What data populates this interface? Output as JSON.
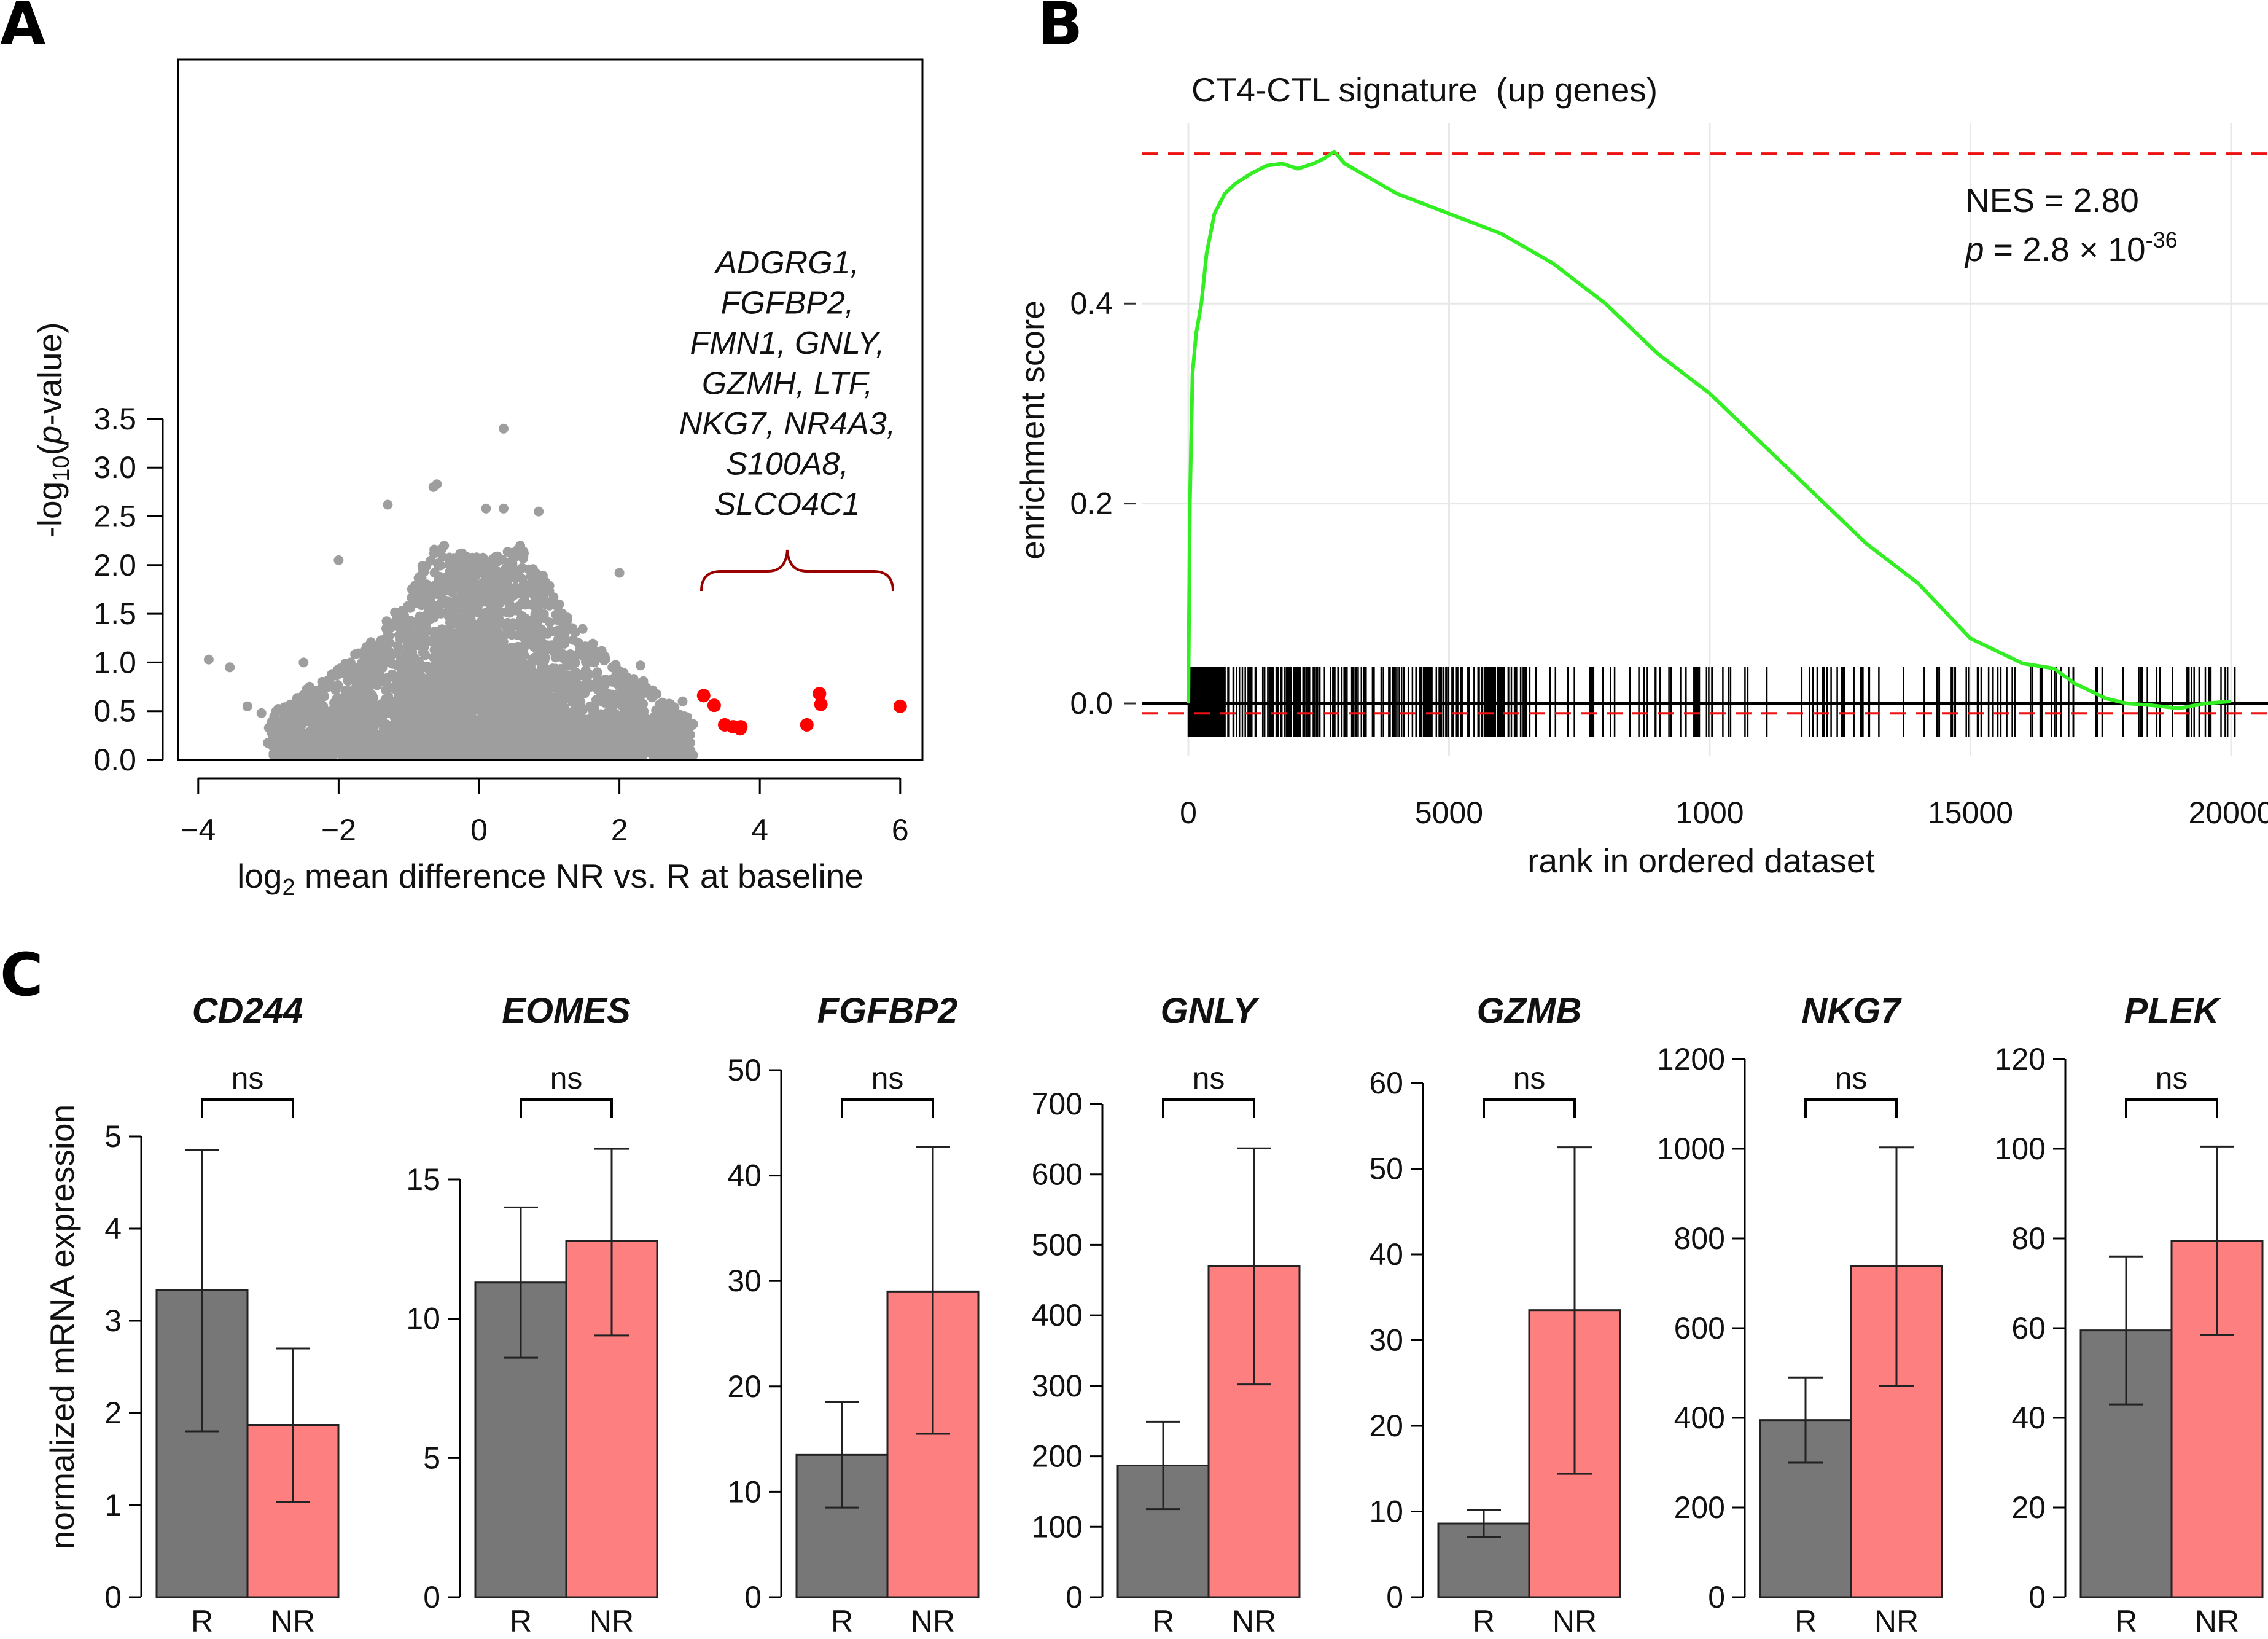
{
  "panel_labels": [
    "A",
    "B",
    "C"
  ],
  "colors": {
    "r": "#777777",
    "nr": "#fd7f80",
    "highlight": "#ff0000",
    "gsea": "#33ee22",
    "ref": "#ee1111"
  },
  "chart_data": [
    {
      "panel": "A",
      "type": "scatter",
      "title": "",
      "xlabel": "log2 mean difference NR vs. R at baseline",
      "ylabel": "-log10(p-value)",
      "xlim": [
        -4.2,
        6.4
      ],
      "ylim": [
        0,
        3.5
      ],
      "xticks": [
        "−4",
        "−2",
        "0",
        "2",
        "4",
        "6"
      ],
      "yticks": [
        "0.0",
        "0.5",
        "1.0",
        "1.5",
        "2.0",
        "2.5",
        "3.0",
        "3.5"
      ],
      "highlighted_genes": [
        "ADGRG1,",
        "FGFBP2,",
        "FMN1, GNLY,",
        "GZMH, LTF,",
        "NKG7, NR4A3,",
        "S100A8,",
        "SLCO4C1"
      ],
      "highlighted_points": [
        {
          "x": 3.2,
          "y": 0.66
        },
        {
          "x": 3.35,
          "y": 0.56
        },
        {
          "x": 3.5,
          "y": 0.36
        },
        {
          "x": 3.62,
          "y": 0.34
        },
        {
          "x": 3.72,
          "y": 0.32
        },
        {
          "x": 3.73,
          "y": 0.34
        },
        {
          "x": 4.67,
          "y": 0.36
        },
        {
          "x": 4.85,
          "y": 0.68
        },
        {
          "x": 4.87,
          "y": 0.57
        },
        {
          "x": 6.0,
          "y": 0.55
        }
      ],
      "outlier_points": [
        {
          "x": 0.35,
          "y": 3.4
        },
        {
          "x": -0.6,
          "y": 2.83
        },
        {
          "x": -0.65,
          "y": 2.8
        },
        {
          "x": -1.3,
          "y": 2.62
        },
        {
          "x": 0.1,
          "y": 2.58
        },
        {
          "x": 0.35,
          "y": 2.58
        },
        {
          "x": 0.85,
          "y": 2.55
        },
        {
          "x": -2.0,
          "y": 2.05
        },
        {
          "x": 2.0,
          "y": 1.92
        },
        {
          "x": -3.85,
          "y": 1.03
        },
        {
          "x": -3.55,
          "y": 0.95
        },
        {
          "x": -3.3,
          "y": 0.55
        },
        {
          "x": -3.1,
          "y": 0.48
        },
        {
          "x": 2.9,
          "y": 0.6
        },
        {
          "x": 2.3,
          "y": 0.97
        },
        {
          "x": -2.5,
          "y": 1.0
        }
      ]
    },
    {
      "panel": "B",
      "type": "line",
      "title": "CT4-CTL signature  (up genes)",
      "xlabel": "rank in ordered dataset",
      "ylabel": "enrichment score",
      "xlim": [
        -500,
        20500
      ],
      "ylim": [
        -0.12,
        0.58
      ],
      "xticks": [
        "0",
        "5000",
        "1000",
        "15000",
        "20000"
      ],
      "yticks": [
        "0.0",
        "0.2",
        "0.4"
      ],
      "nes_text": "NES = 2.80",
      "p_prefix": "p",
      "p_text": " = 2.8 × 10",
      "p_exponent": "-36",
      "max_es": 0.55,
      "min_es": -0.01,
      "x": [
        0,
        30,
        80,
        150,
        250,
        350,
        500,
        700,
        900,
        1200,
        1500,
        1800,
        2100,
        2400,
        2600,
        2800,
        3000,
        3500,
        4000,
        5000,
        6000,
        7000,
        8000,
        9000,
        10000,
        11000,
        12000,
        13000,
        14000,
        15000,
        16000,
        16600,
        17000,
        17600,
        18000,
        18500,
        19000,
        19500,
        20000
      ],
      "y": [
        0.0,
        0.2,
        0.33,
        0.37,
        0.4,
        0.45,
        0.49,
        0.51,
        0.52,
        0.53,
        0.538,
        0.54,
        0.535,
        0.54,
        0.545,
        0.552,
        0.54,
        0.525,
        0.51,
        0.49,
        0.47,
        0.44,
        0.4,
        0.35,
        0.31,
        0.26,
        0.21,
        0.16,
        0.12,
        0.065,
        0.04,
        0.035,
        0.02,
        0.005,
        0.0,
        -0.002,
        -0.005,
        0.0,
        0.002
      ]
    },
    {
      "panel": "C",
      "type": "bar",
      "ylabel": "normalized mRNA expression",
      "categories": [
        "R",
        "NR"
      ],
      "significance": "ns",
      "genes": [
        {
          "gene": "CD244",
          "ymax": 5,
          "ticks": [
            "0",
            "1",
            "2",
            "3",
            "4",
            "5"
          ],
          "r": {
            "value": 3.33,
            "lo": 1.8,
            "hi": 4.85
          },
          "nr": {
            "value": 1.87,
            "lo": 1.03,
            "hi": 2.7
          }
        },
        {
          "gene": "EOMES",
          "ymax": 15,
          "ticks": [
            "0",
            "5",
            "10",
            "15"
          ],
          "r": {
            "value": 11.3,
            "lo": 8.6,
            "hi": 14.0
          },
          "nr": {
            "value": 12.8,
            "lo": 9.4,
            "hi": 16.1
          }
        },
        {
          "gene": "FGFBP2",
          "ymax": 50,
          "ticks": [
            "0",
            "10",
            "20",
            "30",
            "40",
            "50"
          ],
          "r": {
            "value": 13.5,
            "lo": 8.5,
            "hi": 18.5
          },
          "nr": {
            "value": 29.0,
            "lo": 15.5,
            "hi": 42.7
          }
        },
        {
          "gene": "GNLY",
          "ymax": 700,
          "ticks": [
            "0",
            "100",
            "200",
            "300",
            "400",
            "500",
            "600",
            "700"
          ],
          "r": {
            "value": 187,
            "lo": 125,
            "hi": 249
          },
          "nr": {
            "value": 470,
            "lo": 302,
            "hi": 637
          }
        },
        {
          "gene": "GZMB",
          "ymax": 60,
          "ticks": [
            "0",
            "10",
            "20",
            "30",
            "40",
            "50",
            "60"
          ],
          "r": {
            "value": 8.6,
            "lo": 7.0,
            "hi": 10.2
          },
          "nr": {
            "value": 33.5,
            "lo": 14.4,
            "hi": 52.5
          }
        },
        {
          "gene": "NKG7",
          "ymax": 1200,
          "ticks": [
            "0",
            "200",
            "400",
            "600",
            "800",
            "1000",
            "1200"
          ],
          "r": {
            "value": 395,
            "lo": 300,
            "hi": 490
          },
          "nr": {
            "value": 738,
            "lo": 472,
            "hi": 1003
          }
        },
        {
          "gene": "PLEK",
          "ymax": 120,
          "ticks": [
            "0",
            "20",
            "40",
            "60",
            "80",
            "100",
            "120"
          ],
          "r": {
            "value": 59.5,
            "lo": 43,
            "hi": 76
          },
          "nr": {
            "value": 79.5,
            "lo": 58.5,
            "hi": 100.5
          }
        }
      ]
    }
  ]
}
